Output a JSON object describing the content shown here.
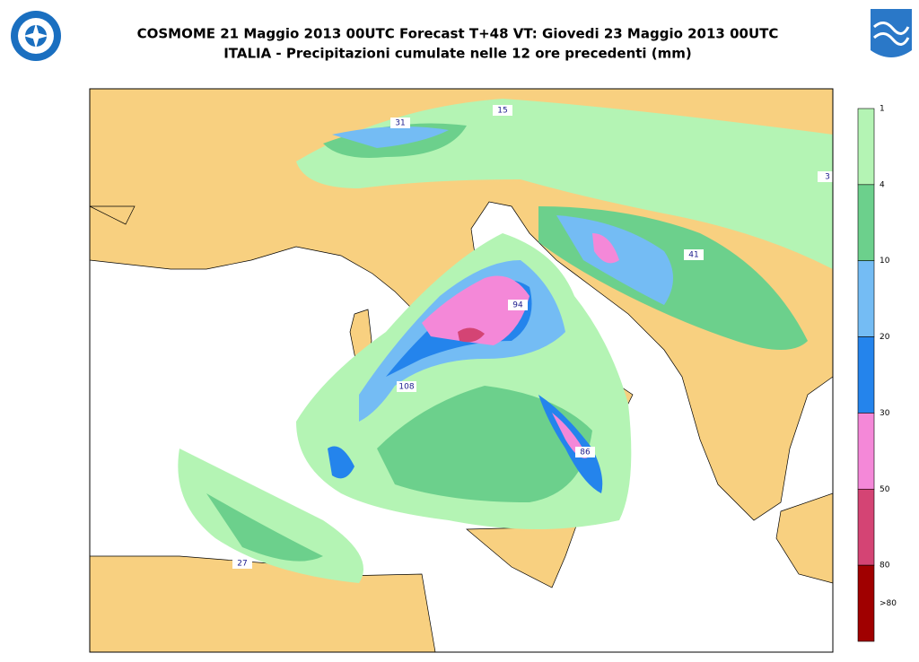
{
  "header": {
    "title": "COSMOME 21 Maggio 2013 00UTC Forecast T+48 VT: Giovedi 23 Maggio 2013 00UTC",
    "subtitle": "ITALIA - Precipitazioni cumulate nelle 12 ore precedenti (mm)"
  },
  "legend": {
    "colors": [
      "#b4f4b4",
      "#6cd08c",
      "#74bcf4",
      "#2484ec",
      "#f488d8",
      "#d44474",
      "#a00000"
    ],
    "labels": [
      1,
      4,
      10,
      20,
      30,
      50,
      80,
      ">80"
    ]
  },
  "map": {
    "maxima": [
      31,
      15,
      3,
      41,
      94,
      108,
      86,
      27
    ]
  }
}
